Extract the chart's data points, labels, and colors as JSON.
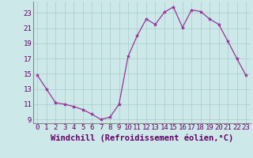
{
  "x": [
    0,
    1,
    2,
    3,
    4,
    5,
    6,
    7,
    8,
    9,
    10,
    11,
    12,
    13,
    14,
    15,
    16,
    17,
    18,
    19,
    20,
    21,
    22,
    23
  ],
  "y": [
    14.8,
    13.0,
    11.2,
    11.0,
    10.7,
    10.3,
    9.7,
    9.0,
    9.3,
    11.0,
    17.3,
    20.0,
    22.2,
    21.5,
    23.1,
    23.8,
    21.1,
    23.4,
    23.2,
    22.2,
    21.5,
    19.3,
    17.0,
    14.8
  ],
  "line_color": "#993399",
  "marker": "*",
  "marker_size": 3,
  "bg_color": "#cce8e8",
  "grid_color": "#aacccc",
  "xlabel": "Windchill (Refroidissement éolien,°C)",
  "xlabel_fontsize": 7.5,
  "tick_fontsize": 6.5,
  "ylim": [
    8.5,
    24.5
  ],
  "yticks": [
    9,
    11,
    13,
    15,
    17,
    19,
    21,
    23
  ],
  "xlim": [
    -0.5,
    23.5
  ],
  "xticks": [
    0,
    1,
    2,
    3,
    4,
    5,
    6,
    7,
    8,
    9,
    10,
    11,
    12,
    13,
    14,
    15,
    16,
    17,
    18,
    19,
    20,
    21,
    22,
    23
  ],
  "xtick_labels": [
    "0",
    "1",
    "2",
    "3",
    "4",
    "5",
    "6",
    "7",
    "8",
    "9",
    "10",
    "11",
    "12",
    "13",
    "14",
    "15",
    "16",
    "17",
    "18",
    "19",
    "20",
    "21",
    "22",
    "23"
  ]
}
